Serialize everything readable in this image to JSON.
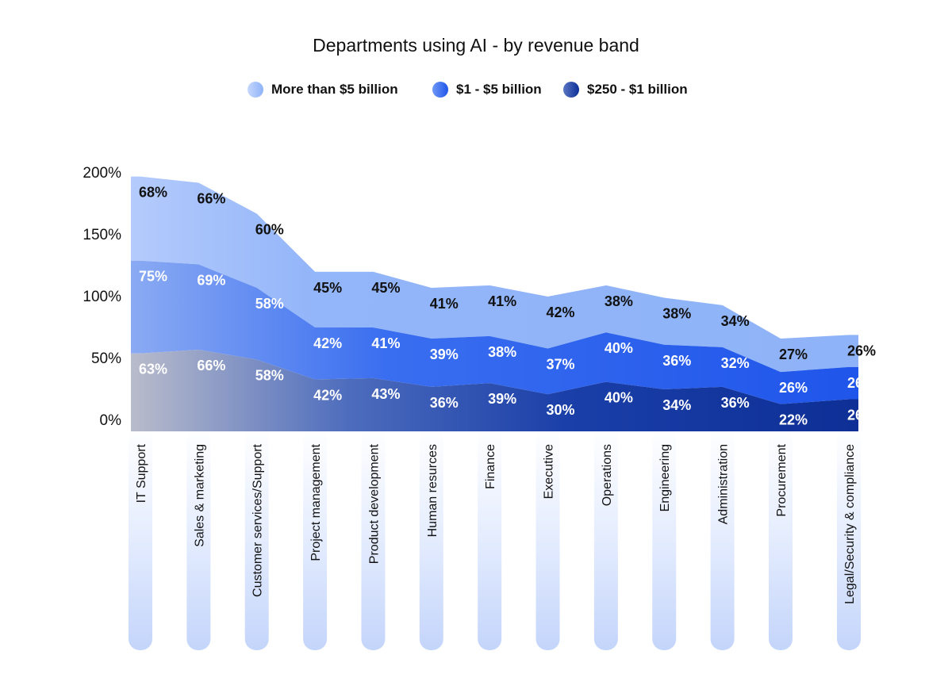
{
  "chart_data": {
    "type": "area",
    "title": "Departments using AI - by revenue band",
    "stacked": true,
    "categories": [
      "IT Support",
      "Sales & marketing",
      "Customer services/Support",
      "Project management",
      "Product development",
      "Human resurces",
      "Finance",
      "Executive",
      "Operations",
      "Engineering",
      "Administration",
      "Procurement",
      "Legal/Security & compliance"
    ],
    "series": [
      {
        "name": "$250 - $1 billion",
        "values": [
          63,
          66,
          58,
          42,
          43,
          36,
          39,
          30,
          40,
          34,
          36,
          22,
          26
        ]
      },
      {
        "name": "$1 - $5 billion",
        "values": [
          75,
          69,
          58,
          42,
          41,
          39,
          38,
          37,
          40,
          36,
          32,
          26,
          26
        ]
      },
      {
        "name": "More than $5 billion",
        "values": [
          68,
          66,
          60,
          45,
          45,
          41,
          41,
          42,
          38,
          38,
          34,
          27,
          26
        ]
      }
    ],
    "y_ticks": [
      "0%",
      "50%",
      "100%",
      "150%",
      "200%"
    ],
    "ylim": [
      0,
      200
    ],
    "legend_position": "top-center",
    "colors": {
      "more_than_5b": "#8fb3f8",
      "1_to_5b": "#2459e6",
      "250m_to_1b": "#0d2f96",
      "category_pill": "#d7e3fd"
    }
  }
}
